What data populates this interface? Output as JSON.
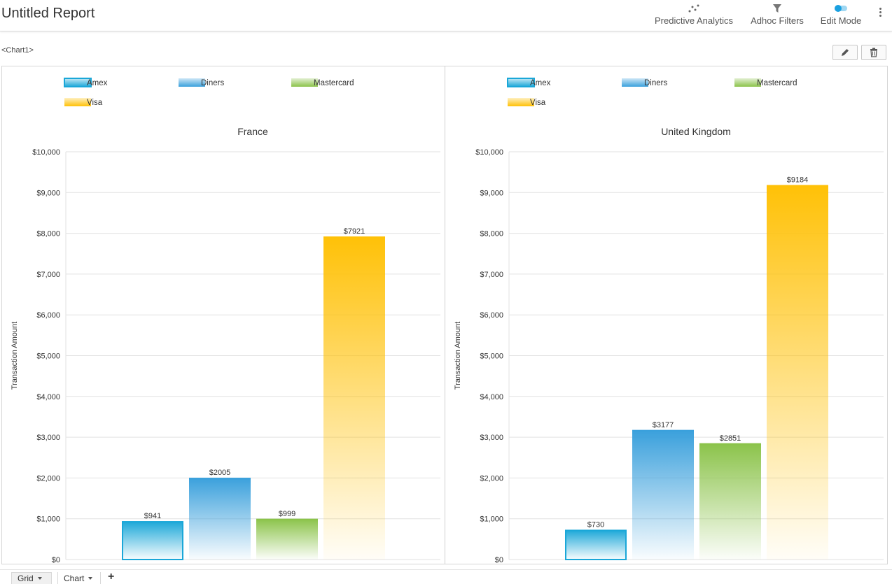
{
  "header": {
    "title": "Untitled Report",
    "tools": {
      "predictive": "Predictive Analytics",
      "adhoc": "Adhoc Filters",
      "edit": "Edit Mode"
    }
  },
  "chart_label": "<Chart1>",
  "legend": [
    "Amex",
    "Diners",
    "Mastercard",
    "Visa"
  ],
  "colors": {
    "amex": "#1aa7d8",
    "diners": "#3aa0dc",
    "mastercard": "#8bc34a",
    "visa": "#ffc107"
  },
  "chart_data": [
    {
      "type": "bar",
      "title": "France",
      "ylabel": "Transaction Amount",
      "xlabel": "",
      "categories": [
        "Amex",
        "Diners",
        "Mastercard",
        "Visa"
      ],
      "values": [
        941,
        2005,
        999,
        7921
      ],
      "value_labels": [
        "$941",
        "$2005",
        "$999",
        "$7921"
      ],
      "ylim": [
        0,
        10000
      ],
      "yticks": [
        "$0",
        "$1,000",
        "$2,000",
        "$3,000",
        "$4,000",
        "$5,000",
        "$6,000",
        "$7,000",
        "$8,000",
        "$9,000",
        "$10,000"
      ],
      "legend_position": "top-left",
      "grid": true
    },
    {
      "type": "bar",
      "title": "United Kingdom",
      "ylabel": "Transaction Amount",
      "xlabel": "",
      "categories": [
        "Amex",
        "Diners",
        "Mastercard",
        "Visa"
      ],
      "values": [
        730,
        3177,
        2851,
        9184
      ],
      "value_labels": [
        "$730",
        "$3177",
        "$2851",
        "$9184"
      ],
      "ylim": [
        0,
        10000
      ],
      "yticks": [
        "$0",
        "$1,000",
        "$2,000",
        "$3,000",
        "$4,000",
        "$5,000",
        "$6,000",
        "$7,000",
        "$8,000",
        "$9,000",
        "$10,000"
      ],
      "legend_position": "top-left",
      "grid": true
    }
  ],
  "bottom_tabs": {
    "grid": "Grid",
    "chart": "Chart",
    "add": "+"
  }
}
